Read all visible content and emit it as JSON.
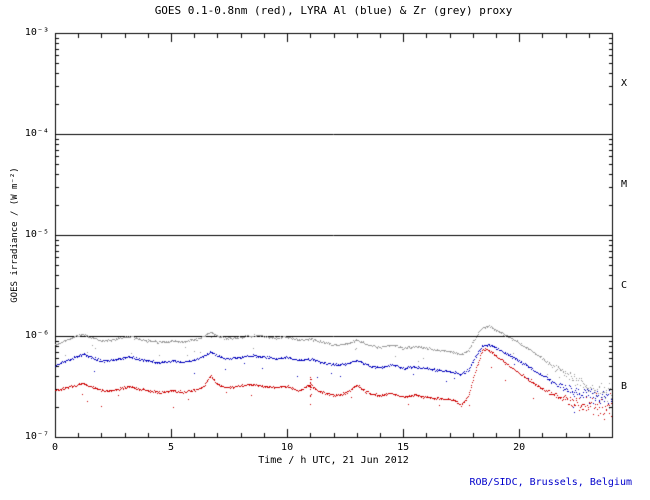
{
  "title": "GOES 0.1-0.8nm (red), LYRA Al (blue) & Zr (grey) proxy",
  "credit": "ROB/SIDC, Brussels, Belgium",
  "colors": {
    "background": "#ffffff",
    "axis": "#000000",
    "credit": "#0000cc",
    "goes_red": "#cc0000",
    "lyra_al_blue": "#0000bb",
    "lyra_zr_grey": "#9a9a9a"
  },
  "axes": {
    "x": {
      "label": "Time / h UTC, 21 Jun 2012",
      "min": 0,
      "max": 24,
      "major_ticks": [
        0,
        5,
        10,
        15,
        20
      ],
      "tick_labels": [
        "0",
        "5",
        "10",
        "15",
        "20"
      ]
    },
    "y": {
      "label": "GOES irradiance / (W m⁻²)",
      "scale": "log",
      "min": 1e-07,
      "max": 0.001,
      "tick_exponents": [
        -3,
        -4,
        -5,
        -6,
        -7
      ],
      "tick_labels": [
        "10⁻³",
        "10⁻⁴",
        "10⁻⁵",
        "10⁻⁶",
        "10⁻⁷"
      ]
    }
  },
  "flare_classes": [
    {
      "label": "X",
      "band_exponents": [
        -3,
        -4
      ]
    },
    {
      "label": "M",
      "band_exponents": [
        -4,
        -5
      ]
    },
    {
      "label": "C",
      "band_exponents": [
        -5,
        -6
      ]
    },
    {
      "label": "B",
      "band_exponents": [
        -6,
        -7
      ]
    }
  ],
  "hlines": [
    0.0001,
    1e-05,
    1e-06
  ],
  "chart_data": {
    "type": "scatter",
    "title": "GOES 0.1-0.8nm (red), LYRA Al (blue) & Zr (grey) proxy",
    "xlabel": "Time / h UTC, 21 Jun 2012",
    "ylabel": "GOES irradiance / (W m⁻²)",
    "xlim": [
      0,
      24
    ],
    "ylim": [
      1e-07,
      0.001
    ],
    "yscale": "log",
    "hlines": [
      0.0001,
      1e-05,
      1e-06
    ],
    "legend": "in-title",
    "series": [
      {
        "name": "GOES 0.1-0.8nm",
        "color": "#cc0000",
        "points": [
          [
            0,
            2.9e-07
          ],
          [
            0.3,
            3e-07
          ],
          [
            0.7,
            3.2e-07
          ],
          [
            1.0,
            3.3e-07
          ],
          [
            1.2,
            3.4e-07
          ],
          [
            1.5,
            3.2e-07
          ],
          [
            2.0,
            2.9e-07
          ],
          [
            2.4,
            2.9e-07
          ],
          [
            2.8,
            3e-07
          ],
          [
            3.2,
            3.2e-07
          ],
          [
            3.6,
            3e-07
          ],
          [
            4.0,
            2.9e-07
          ],
          [
            4.5,
            2.8e-07
          ],
          [
            5.0,
            2.9e-07
          ],
          [
            5.5,
            2.8e-07
          ],
          [
            6.0,
            2.9e-07
          ],
          [
            6.4,
            3.2e-07
          ],
          [
            6.7,
            4.1e-07
          ],
          [
            7.0,
            3.3e-07
          ],
          [
            7.4,
            3.1e-07
          ],
          [
            7.8,
            3.2e-07
          ],
          [
            8.2,
            3.3e-07
          ],
          [
            8.6,
            3.3e-07
          ],
          [
            9.0,
            3.2e-07
          ],
          [
            9.5,
            3.1e-07
          ],
          [
            10.0,
            3.2e-07
          ],
          [
            10.5,
            2.9e-07
          ],
          [
            11.0,
            3.3e-07
          ],
          [
            11.3,
            2.9e-07
          ],
          [
            11.5,
            2.8e-07
          ],
          [
            12.0,
            2.6e-07
          ],
          [
            12.5,
            2.7e-07
          ],
          [
            13.0,
            3.3e-07
          ],
          [
            13.3,
            2.9e-07
          ],
          [
            13.6,
            2.7e-07
          ],
          [
            14.0,
            2.6e-07
          ],
          [
            14.5,
            2.7e-07
          ],
          [
            15.0,
            2.5e-07
          ],
          [
            15.5,
            2.6e-07
          ],
          [
            16.0,
            2.5e-07
          ],
          [
            16.5,
            2.4e-07
          ],
          [
            17.0,
            2.4e-07
          ],
          [
            17.5,
            2.1e-07
          ],
          [
            17.8,
            2.5e-07
          ],
          [
            18.1,
            4.5e-07
          ],
          [
            18.4,
            7.2e-07
          ],
          [
            18.6,
            7.5e-07
          ],
          [
            19.0,
            6.4e-07
          ],
          [
            19.5,
            5.2e-07
          ],
          [
            20.0,
            4.3e-07
          ],
          [
            20.5,
            3.6e-07
          ],
          [
            21.0,
            3e-07
          ],
          [
            21.5,
            2.6e-07
          ],
          [
            22.0,
            2.4e-07
          ],
          [
            22.5,
            2.2e-07
          ],
          [
            23.0,
            2.1e-07
          ],
          [
            23.5,
            2.1e-07
          ],
          [
            24.0,
            2e-07
          ]
        ]
      },
      {
        "name": "LYRA Al proxy",
        "color": "#0000bb",
        "points": [
          [
            0,
            5.1e-07
          ],
          [
            0.3,
            5.5e-07
          ],
          [
            0.7,
            6e-07
          ],
          [
            1.0,
            6.4e-07
          ],
          [
            1.2,
            6.6e-07
          ],
          [
            1.5,
            6.2e-07
          ],
          [
            2.0,
            5.7e-07
          ],
          [
            2.4,
            5.8e-07
          ],
          [
            2.8,
            6e-07
          ],
          [
            3.2,
            6.3e-07
          ],
          [
            3.6,
            5.9e-07
          ],
          [
            4.0,
            5.7e-07
          ],
          [
            4.5,
            5.5e-07
          ],
          [
            5.0,
            5.7e-07
          ],
          [
            5.5,
            5.5e-07
          ],
          [
            6.0,
            5.8e-07
          ],
          [
            6.4,
            6.3e-07
          ],
          [
            6.7,
            7e-07
          ],
          [
            7.0,
            6.3e-07
          ],
          [
            7.4,
            6e-07
          ],
          [
            7.8,
            6.1e-07
          ],
          [
            8.2,
            6.3e-07
          ],
          [
            8.6,
            6.4e-07
          ],
          [
            9.0,
            6.3e-07
          ],
          [
            9.5,
            6e-07
          ],
          [
            10.0,
            6.2e-07
          ],
          [
            10.5,
            5.8e-07
          ],
          [
            11.0,
            5.9e-07
          ],
          [
            11.5,
            5.5e-07
          ],
          [
            12.0,
            5.2e-07
          ],
          [
            12.5,
            5.3e-07
          ],
          [
            13.0,
            5.8e-07
          ],
          [
            13.3,
            5.4e-07
          ],
          [
            13.6,
            5e-07
          ],
          [
            14.0,
            4.9e-07
          ],
          [
            14.5,
            5.2e-07
          ],
          [
            15.0,
            4.8e-07
          ],
          [
            15.5,
            5e-07
          ],
          [
            16.0,
            4.8e-07
          ],
          [
            16.5,
            4.6e-07
          ],
          [
            17.0,
            4.5e-07
          ],
          [
            17.5,
            4.2e-07
          ],
          [
            17.8,
            4.6e-07
          ],
          [
            18.1,
            6.2e-07
          ],
          [
            18.4,
            8e-07
          ],
          [
            18.7,
            8.3e-07
          ],
          [
            19.0,
            7.6e-07
          ],
          [
            19.5,
            6.6e-07
          ],
          [
            20.0,
            5.7e-07
          ],
          [
            20.5,
            4.8e-07
          ],
          [
            21.0,
            4.1e-07
          ],
          [
            21.5,
            3.5e-07
          ],
          [
            22.0,
            3.1e-07
          ],
          [
            22.5,
            2.8e-07
          ],
          [
            23.0,
            2.6e-07
          ],
          [
            23.5,
            2.5e-07
          ],
          [
            24.0,
            2.4e-07
          ]
        ]
      },
      {
        "name": "LYRA Zr proxy",
        "color": "#9a9a9a",
        "points": [
          [
            0,
            8.2e-07
          ],
          [
            0.3,
            8.8e-07
          ],
          [
            0.7,
            9.6e-07
          ],
          [
            1.0,
            1.02e-06
          ],
          [
            1.2,
            1.05e-06
          ],
          [
            1.5,
            9.8e-07
          ],
          [
            2.0,
            9e-07
          ],
          [
            2.4,
            9.2e-07
          ],
          [
            2.8,
            9.6e-07
          ],
          [
            3.2,
            1e-06
          ],
          [
            3.6,
            9.4e-07
          ],
          [
            4.0,
            9e-07
          ],
          [
            4.5,
            8.8e-07
          ],
          [
            5.0,
            9e-07
          ],
          [
            5.5,
            8.8e-07
          ],
          [
            6.0,
            9.2e-07
          ],
          [
            6.4,
            1e-06
          ],
          [
            6.7,
            1.12e-06
          ],
          [
            7.0,
            1e-06
          ],
          [
            7.4,
            9.5e-07
          ],
          [
            7.8,
            9.7e-07
          ],
          [
            8.2,
            1e-06
          ],
          [
            8.6,
            1.02e-06
          ],
          [
            9.0,
            1e-06
          ],
          [
            9.5,
            9.6e-07
          ],
          [
            10.0,
            9.8e-07
          ],
          [
            10.5,
            9.2e-07
          ],
          [
            11.0,
            9.4e-07
          ],
          [
            11.5,
            8.8e-07
          ],
          [
            12.0,
            8.2e-07
          ],
          [
            12.5,
            8.4e-07
          ],
          [
            13.0,
            9.2e-07
          ],
          [
            13.3,
            8.6e-07
          ],
          [
            13.6,
            8e-07
          ],
          [
            14.0,
            7.8e-07
          ],
          [
            14.5,
            8.2e-07
          ],
          [
            15.0,
            7.6e-07
          ],
          [
            15.5,
            7.9e-07
          ],
          [
            16.0,
            7.6e-07
          ],
          [
            16.5,
            7.3e-07
          ],
          [
            17.0,
            7.1e-07
          ],
          [
            17.5,
            6.6e-07
          ],
          [
            17.8,
            7.2e-07
          ],
          [
            18.1,
            9.5e-07
          ],
          [
            18.4,
            1.22e-06
          ],
          [
            18.7,
            1.26e-06
          ],
          [
            19.0,
            1.15e-06
          ],
          [
            19.5,
            1e-06
          ],
          [
            20.0,
            8.6e-07
          ],
          [
            20.5,
            7.2e-07
          ],
          [
            21.0,
            6e-07
          ],
          [
            21.5,
            5e-07
          ],
          [
            22.0,
            4.2e-07
          ],
          [
            22.5,
            3.6e-07
          ],
          [
            23.0,
            3.1e-07
          ],
          [
            23.5,
            2.8e-07
          ],
          [
            24.0,
            2.5e-07
          ]
        ]
      }
    ],
    "annotations": {
      "red_spike": {
        "t": 11.0,
        "ymin": 2.1e-07,
        "ymax": 4.1e-07
      }
    }
  }
}
